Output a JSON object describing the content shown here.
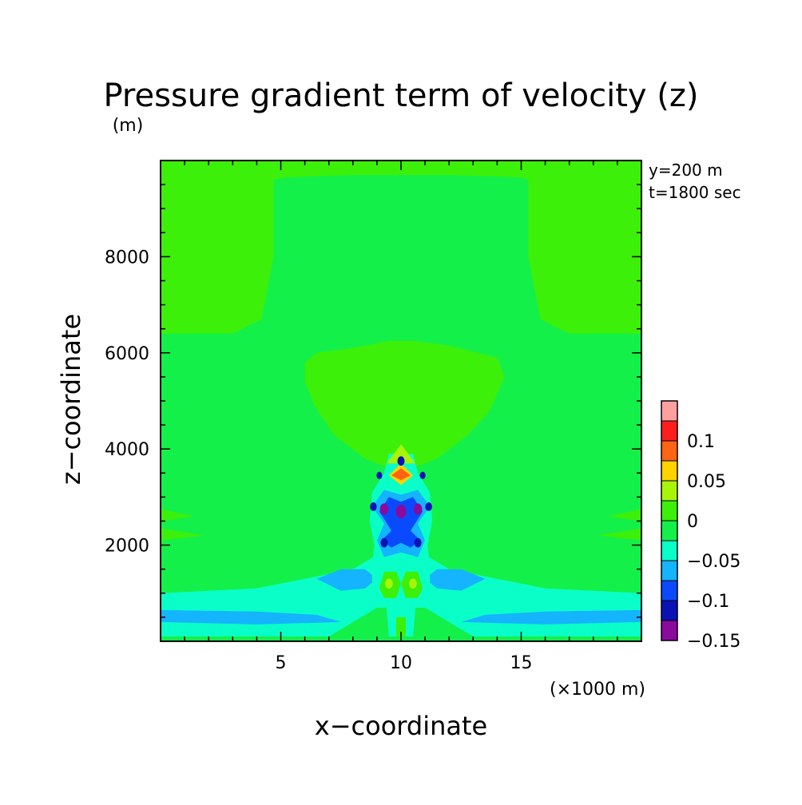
{
  "chart_data": {
    "type": "heatmap",
    "title": "Pressure gradient term of velocity (z)",
    "y_unit": "(m)",
    "x_unit": "(×1000 m)",
    "xlabel": "x−coordinate",
    "ylabel": "z−coordinate",
    "annotations": [
      "y=200 m",
      "t=1800 sec"
    ],
    "xlim": [
      0,
      20
    ],
    "ylim": [
      0,
      10000
    ],
    "x_ticks": [
      5,
      10,
      15
    ],
    "y_ticks": [
      2000,
      4000,
      6000,
      8000
    ],
    "colorbar": {
      "levels": [
        -0.15,
        -0.125,
        -0.1,
        -0.075,
        -0.05,
        -0.025,
        0,
        0.025,
        0.05,
        0.075,
        0.1,
        0.125
      ],
      "colors": [
        "#8a0a9e",
        "#0a12b4",
        "#0a4aff",
        "#14b4ff",
        "#0affc8",
        "#14f04a",
        "#3cf00a",
        "#a8f50a",
        "#ffd200",
        "#ff6414",
        "#ff1e1e",
        "#ffa0a0"
      ],
      "tick_labels": [
        "0.1",
        "0.05",
        "0",
        "−0.05",
        "−0.1",
        "−0.15"
      ],
      "tick_values": [
        0.1,
        0.05,
        0,
        -0.05,
        -0.1,
        -0.15
      ]
    },
    "field_background": -0.0125,
    "field_regions": [
      {
        "name": "top-band",
        "value": 0.0125,
        "poly": [
          [
            0,
            9800
          ],
          [
            20,
            9800
          ],
          [
            20,
            10000
          ],
          [
            0,
            10000
          ]
        ]
      },
      {
        "name": "upper-left-lobe",
        "value": 0.0125,
        "poly": [
          [
            0,
            6400
          ],
          [
            3,
            6400
          ],
          [
            4.2,
            6700
          ],
          [
            4.7,
            8000
          ],
          [
            4.7,
            9600
          ],
          [
            5.2,
            9650
          ],
          [
            8,
            9700
          ],
          [
            12,
            9700
          ],
          [
            15,
            9650
          ],
          [
            15.3,
            9600
          ],
          [
            15.3,
            8000
          ],
          [
            15.8,
            6700
          ],
          [
            17,
            6400
          ],
          [
            20,
            6400
          ],
          [
            20,
            9800
          ],
          [
            0,
            9800
          ]
        ]
      },
      {
        "name": "central-dome",
        "value": 0.0125,
        "poly": [
          [
            6,
            5800
          ],
          [
            6.5,
            6000
          ],
          [
            8,
            6100
          ],
          [
            9.5,
            6250
          ],
          [
            10.5,
            6250
          ],
          [
            12,
            6150
          ],
          [
            14,
            5900
          ],
          [
            14.3,
            5500
          ],
          [
            13.7,
            4800
          ],
          [
            12.8,
            4300
          ],
          [
            11.5,
            3800
          ],
          [
            10.5,
            3600
          ],
          [
            9.5,
            3600
          ],
          [
            8.5,
            3800
          ],
          [
            7.2,
            4300
          ],
          [
            6.4,
            4900
          ],
          [
            6,
            5400
          ]
        ]
      },
      {
        "name": "lower-band-1",
        "value": -0.0375,
        "poly": [
          [
            0,
            100
          ],
          [
            0,
            1000
          ],
          [
            4,
            1100
          ],
          [
            8,
            1500
          ],
          [
            9,
            1800
          ],
          [
            11,
            1800
          ],
          [
            12,
            1500
          ],
          [
            16,
            1100
          ],
          [
            20,
            1000
          ],
          [
            20,
            100
          ],
          [
            13,
            100
          ],
          [
            11,
            700
          ],
          [
            9,
            700
          ],
          [
            7,
            100
          ]
        ]
      },
      {
        "name": "bottom-cyan-left",
        "value": -0.0625,
        "poly": [
          [
            0,
            400
          ],
          [
            0,
            650
          ],
          [
            4,
            620
          ],
          [
            6.5,
            550
          ],
          [
            7.5,
            400
          ],
          [
            4,
            350
          ]
        ]
      },
      {
        "name": "bottom-cyan-right",
        "value": -0.0625,
        "poly": [
          [
            20,
            400
          ],
          [
            20,
            650
          ],
          [
            16,
            620
          ],
          [
            13.5,
            550
          ],
          [
            12.5,
            400
          ],
          [
            16,
            350
          ]
        ]
      },
      {
        "name": "mid-cyan-left",
        "value": -0.0625,
        "poly": [
          [
            6.5,
            1300
          ],
          [
            7.5,
            1500
          ],
          [
            8.5,
            1500
          ],
          [
            9,
            1300
          ],
          [
            8.5,
            1100
          ],
          [
            7.5,
            1050
          ]
        ]
      },
      {
        "name": "mid-cyan-right",
        "value": -0.0625,
        "poly": [
          [
            13.5,
            1300
          ],
          [
            12.5,
            1500
          ],
          [
            11.5,
            1500
          ],
          [
            11,
            1300
          ],
          [
            11.5,
            1100
          ],
          [
            12.5,
            1050
          ]
        ]
      },
      {
        "name": "left-edge-lobes",
        "value": 0.0125,
        "poly": [
          [
            0,
            2100
          ],
          [
            1.8,
            2200
          ],
          [
            0,
            2350
          ]
        ]
      },
      {
        "name": "left-edge-lobes-2",
        "value": 0.0125,
        "poly": [
          [
            0,
            2500
          ],
          [
            1.4,
            2600
          ],
          [
            0,
            2750
          ]
        ]
      },
      {
        "name": "right-edge-lobes",
        "value": 0.0125,
        "poly": [
          [
            20,
            2100
          ],
          [
            18.2,
            2200
          ],
          [
            20,
            2350
          ]
        ]
      },
      {
        "name": "right-edge-lobes-2",
        "value": 0.0125,
        "poly": [
          [
            20,
            2500
          ],
          [
            18.6,
            2600
          ],
          [
            20,
            2750
          ]
        ]
      },
      {
        "name": "core-outer",
        "value": -0.0375,
        "poly": [
          [
            8.8,
            1000
          ],
          [
            8.8,
            1600
          ],
          [
            8.9,
            2000
          ],
          [
            8.7,
            2500
          ],
          [
            8.8,
            3100
          ],
          [
            9.3,
            3500
          ],
          [
            9.5,
            3900
          ],
          [
            10.5,
            3900
          ],
          [
            10.7,
            3500
          ],
          [
            11.2,
            3100
          ],
          [
            11.3,
            2500
          ],
          [
            11.1,
            2000
          ],
          [
            11.2,
            1600
          ],
          [
            11.2,
            1000
          ],
          [
            10.6,
            700
          ],
          [
            10.5,
            100
          ],
          [
            9.5,
            100
          ],
          [
            9.4,
            700
          ]
        ]
      },
      {
        "name": "core-cyan",
        "value": -0.0625,
        "poly": [
          [
            9,
            2100
          ],
          [
            9.3,
            1750
          ],
          [
            10,
            1850
          ],
          [
            10.7,
            1750
          ],
          [
            11,
            2100
          ],
          [
            10.7,
            2450
          ],
          [
            11.2,
            2800
          ],
          [
            10.7,
            3150
          ],
          [
            10,
            3050
          ],
          [
            9.3,
            3150
          ],
          [
            8.8,
            2800
          ],
          [
            9.3,
            2450
          ]
        ]
      },
      {
        "name": "core-light-blue",
        "value": -0.0875,
        "poly": [
          [
            9.2,
            2100
          ],
          [
            9.6,
            1950
          ],
          [
            10,
            2050
          ],
          [
            10.4,
            1950
          ],
          [
            10.8,
            2100
          ],
          [
            10.4,
            2300
          ],
          [
            10.9,
            2700
          ],
          [
            10.5,
            3000
          ],
          [
            10,
            2900
          ],
          [
            9.5,
            3000
          ],
          [
            9.1,
            2700
          ],
          [
            9.6,
            2300
          ]
        ]
      },
      {
        "name": "lower-yellow-left",
        "value": 0.0125,
        "poly": [
          [
            9.1,
            1100
          ],
          [
            9.3,
            1450
          ],
          [
            9.8,
            1450
          ],
          [
            10,
            1200
          ],
          [
            9.8,
            900
          ],
          [
            9.3,
            900
          ]
        ]
      },
      {
        "name": "lower-yellow-right",
        "value": 0.0125,
        "poly": [
          [
            10.9,
            1100
          ],
          [
            10.7,
            1450
          ],
          [
            10.2,
            1450
          ],
          [
            10,
            1200
          ],
          [
            10.2,
            900
          ],
          [
            10.7,
            900
          ]
        ]
      },
      {
        "name": "bottom-stem",
        "value": 0.0125,
        "poly": [
          [
            9.8,
            100
          ],
          [
            10.2,
            100
          ],
          [
            10.2,
            500
          ],
          [
            9.8,
            500
          ]
        ]
      },
      {
        "name": "upper-yellow",
        "value": 0.0375,
        "poly": [
          [
            9.4,
            3700
          ],
          [
            10,
            4100
          ],
          [
            10.6,
            3700
          ]
        ]
      },
      {
        "name": "upper-orange",
        "value": 0.0625,
        "poly": [
          [
            9.5,
            3450
          ],
          [
            10,
            3700
          ],
          [
            10.5,
            3450
          ],
          [
            10,
            3250
          ]
        ]
      },
      {
        "name": "upper-red",
        "value": 0.0875,
        "poly": [
          [
            9.6,
            3450
          ],
          [
            10,
            3600
          ],
          [
            10.4,
            3450
          ],
          [
            10,
            3350
          ]
        ]
      }
    ],
    "field_spots": [
      {
        "x": 9.3,
        "z": 2750,
        "r": 0.18,
        "value": -0.1375
      },
      {
        "x": 10.0,
        "z": 2700,
        "r": 0.22,
        "value": -0.1375
      },
      {
        "x": 10.7,
        "z": 2750,
        "r": 0.18,
        "value": -0.1375
      },
      {
        "x": 8.85,
        "z": 2800,
        "r": 0.14,
        "value": -0.1125
      },
      {
        "x": 11.15,
        "z": 2800,
        "r": 0.14,
        "value": -0.1125
      },
      {
        "x": 9.1,
        "z": 3450,
        "r": 0.12,
        "value": -0.1125
      },
      {
        "x": 10.9,
        "z": 3450,
        "r": 0.12,
        "value": -0.1125
      },
      {
        "x": 10.0,
        "z": 3750,
        "r": 0.15,
        "value": -0.1125
      },
      {
        "x": 9.3,
        "z": 2050,
        "r": 0.15,
        "value": -0.1125
      },
      {
        "x": 10.7,
        "z": 2050,
        "r": 0.15,
        "value": -0.1125
      },
      {
        "x": 9.5,
        "z": 1200,
        "r": 0.16,
        "value": 0.0375
      },
      {
        "x": 10.5,
        "z": 1200,
        "r": 0.16,
        "value": 0.0375
      }
    ]
  }
}
